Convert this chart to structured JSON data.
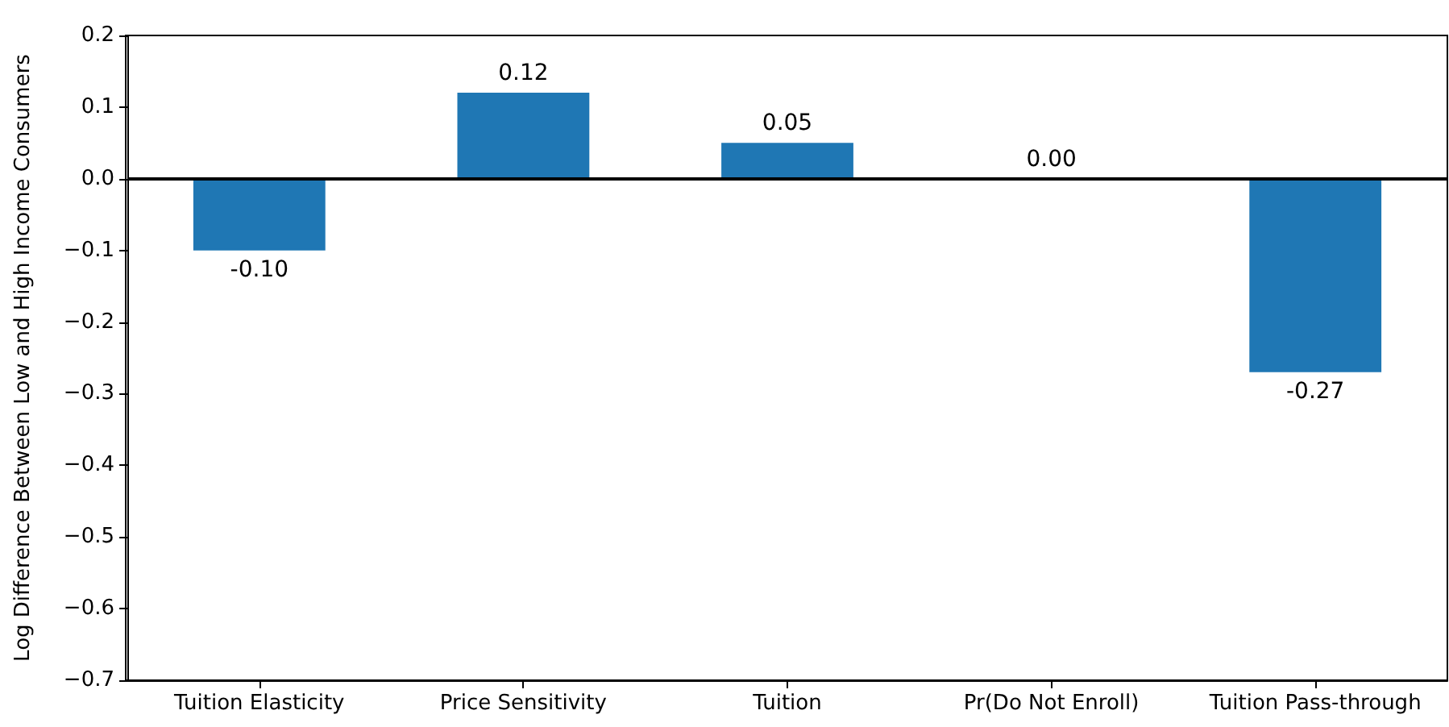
{
  "chart_data": {
    "type": "bar",
    "ylabel": "Log Difference Between Low and High Income Consumers",
    "categories": [
      "Tuition Elasticity",
      "Price Sensitivity",
      "Tuition",
      "Pr(Do Not Enroll)",
      "Tuition Pass-through"
    ],
    "values": [
      -0.1,
      0.12,
      0.05,
      0.0,
      -0.27
    ],
    "value_labels": [
      "-0.10",
      "0.12",
      "0.05",
      "0.00",
      "-0.27"
    ],
    "color": "#1f77b4",
    "ylim": [
      -0.7,
      0.2
    ],
    "yticks": [
      {
        "value": -0.7,
        "label": "−0.7"
      },
      {
        "value": -0.6,
        "label": "−0.6"
      },
      {
        "value": -0.5,
        "label": "−0.5"
      },
      {
        "value": -0.4,
        "label": "−0.4"
      },
      {
        "value": -0.3,
        "label": "−0.3"
      },
      {
        "value": -0.2,
        "label": "−0.2"
      },
      {
        "value": -0.1,
        "label": "−0.1"
      },
      {
        "value": 0,
        "label": "0.0"
      },
      {
        "value": 0.1,
        "label": "0.1"
      },
      {
        "value": 0.2,
        "label": "0.2"
      }
    ],
    "ref_lines": [
      {
        "axis": "y",
        "value": 0,
        "color": "#000000"
      }
    ],
    "grid": false
  }
}
